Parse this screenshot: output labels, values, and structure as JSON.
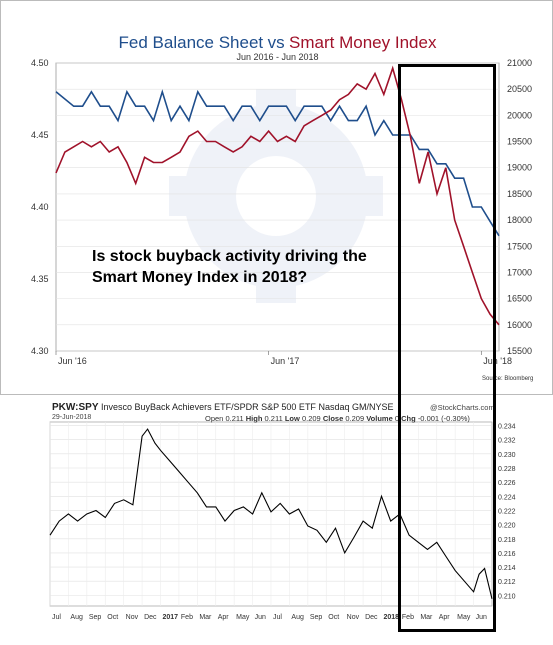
{
  "top_chart": {
    "title_part1": "Fed Balance Sheet",
    "title_vs": "vs",
    "title_part2": "Smart Money Index",
    "subtitle": "Jun 2016 - Jun 2018",
    "source": "Source: Bloomberg",
    "colors": {
      "fed": "#1f4e8c",
      "smi": "#a0122a",
      "watermark": "#e3e8f3"
    }
  },
  "bottom_chart": {
    "symbol": "PKW:SPY",
    "description": "Invesco BuyBack Achievers ETF/SPDR S&P 500 ETF",
    "exchange": "Nasdaq GM/NYSE",
    "date": "29-Jun-2018",
    "open_label": "Open",
    "open": "0.211",
    "high_label": "High",
    "high": "0.211",
    "low_label": "Low",
    "low": "0.209",
    "close_label": "Close",
    "close": "0.209",
    "volume_label": "Volume",
    "volume": "0",
    "chg_label": "Chg",
    "chg": "-0.001 (-0.30%)",
    "brand": "@StockCharts.com",
    "color": "#000000"
  },
  "callout": {
    "line1": "Is stock buyback activity driving the",
    "line2": "Smart Money Index in 2018?"
  },
  "chart_data": [
    {
      "type": "line",
      "title": "Fed Balance Sheet vs Smart Money Index",
      "subtitle": "Jun 2016 - Jun 2018",
      "x_tick_labels": [
        "Jun '16",
        "Jun '17",
        "Jun '18"
      ],
      "left_axis": {
        "ylim": [
          4.3,
          4.5
        ],
        "ticks": [
          "4.30",
          "4.35",
          "4.40",
          "4.45",
          "4.50"
        ]
      },
      "right_axis": {
        "ylim": [
          15500,
          21000
        ],
        "ticks": [
          "15500",
          "16000",
          "16500",
          "17000",
          "17500",
          "18000",
          "18500",
          "19000",
          "19500",
          "20000",
          "20500",
          "21000"
        ]
      },
      "series": [
        {
          "name": "Fed Balance Sheet",
          "axis": "left",
          "color": "#1f4e8c",
          "x": [
            0,
            1,
            1.5,
            2,
            2.5,
            3,
            3.5,
            4,
            4.5,
            5,
            5.5,
            6,
            6.5,
            7,
            7.5,
            8,
            8.5,
            9,
            9.5,
            10,
            10.5,
            11,
            11.5,
            12,
            12.5,
            13,
            13.5,
            14,
            14.5,
            15,
            15.5,
            16,
            16.5,
            17,
            17.5,
            18,
            18.5,
            19,
            19.5,
            20,
            20.5,
            21,
            21.5,
            22,
            22.5,
            23,
            23.5,
            24,
            24.5,
            25
          ],
          "values": [
            4.48,
            4.47,
            4.47,
            4.48,
            4.47,
            4.47,
            4.46,
            4.48,
            4.47,
            4.47,
            4.46,
            4.48,
            4.46,
            4.47,
            4.46,
            4.48,
            4.47,
            4.47,
            4.47,
            4.46,
            4.47,
            4.47,
            4.46,
            4.47,
            4.47,
            4.47,
            4.46,
            4.47,
            4.47,
            4.47,
            4.46,
            4.47,
            4.46,
            4.46,
            4.47,
            4.45,
            4.46,
            4.45,
            4.45,
            4.45,
            4.44,
            4.44,
            4.43,
            4.43,
            4.42,
            4.42,
            4.4,
            4.4,
            4.39,
            4.38
          ]
        },
        {
          "name": "Smart Money Index",
          "axis": "right",
          "color": "#a0122a",
          "x": [
            0,
            0.5,
            1,
            1.5,
            2,
            2.5,
            3,
            3.5,
            4,
            4.5,
            5,
            5.5,
            6,
            6.5,
            7,
            7.5,
            8,
            8.5,
            9,
            9.5,
            10,
            10.5,
            11,
            11.5,
            12,
            12.5,
            13,
            13.5,
            14,
            14.5,
            15,
            15.5,
            16,
            16.5,
            17,
            17.5,
            18,
            18.5,
            19,
            19.5,
            20,
            20.5,
            21,
            21.5,
            22,
            22.5,
            23,
            23.5,
            24,
            24.5,
            25
          ],
          "values": [
            18900,
            19300,
            19400,
            19500,
            19400,
            19500,
            19300,
            19400,
            19100,
            18700,
            19200,
            19100,
            19100,
            19200,
            19300,
            19600,
            19700,
            19500,
            19500,
            19400,
            19300,
            19400,
            19600,
            19500,
            19700,
            19500,
            19600,
            19500,
            19800,
            19900,
            20000,
            20100,
            20300,
            20400,
            20600,
            20500,
            20800,
            20400,
            20900,
            20300,
            19600,
            18700,
            19300,
            18500,
            19000,
            18000,
            17500,
            17000,
            16500,
            16200,
            16000
          ]
        }
      ]
    },
    {
      "type": "line",
      "title": "PKW:SPY Invesco BuyBack Achievers ETF/SPDR S&P 500 ETF",
      "x_tick_labels": [
        "Jul",
        "Aug",
        "Sep",
        "Oct",
        "Nov",
        "Dec",
        "2017",
        "Feb",
        "Mar",
        "Apr",
        "May",
        "Jun",
        "Jul",
        "Aug",
        "Sep",
        "Oct",
        "Nov",
        "Dec",
        "2018",
        "Feb",
        "Mar",
        "Apr",
        "May",
        "Jun"
      ],
      "ylim": [
        0.2085,
        0.2345
      ],
      "y_ticks": [
        "0.210",
        "0.212",
        "0.214",
        "0.216",
        "0.218",
        "0.220",
        "0.222",
        "0.224",
        "0.226",
        "0.228",
        "0.230",
        "0.232",
        "0.234"
      ],
      "series": [
        {
          "name": "PKW:SPY",
          "color": "#000000",
          "x": [
            0,
            0.5,
            1,
            1.5,
            2,
            2.5,
            3,
            3.5,
            4,
            4.5,
            5,
            5.3,
            5.7,
            6,
            6.5,
            7,
            7.5,
            8,
            8.5,
            9,
            9.5,
            10,
            10.5,
            11,
            11.5,
            12,
            12.5,
            13,
            13.5,
            14,
            14.5,
            15,
            15.5,
            16,
            16.5,
            17,
            17.5,
            18,
            18.5,
            19,
            19.5,
            20,
            20.5,
            21,
            21.5,
            22,
            22.5,
            23,
            23.3,
            23.6,
            24
          ],
          "values": [
            0.2185,
            0.2205,
            0.2215,
            0.2205,
            0.2215,
            0.222,
            0.221,
            0.223,
            0.2235,
            0.2228,
            0.2325,
            0.2335,
            0.2315,
            0.2305,
            0.229,
            0.2275,
            0.226,
            0.2245,
            0.2225,
            0.2225,
            0.2205,
            0.222,
            0.2225,
            0.2215,
            0.2245,
            0.2218,
            0.223,
            0.2215,
            0.2222,
            0.2198,
            0.2192,
            0.2175,
            0.2195,
            0.216,
            0.2182,
            0.2205,
            0.2195,
            0.224,
            0.2205,
            0.2215,
            0.2185,
            0.2175,
            0.2165,
            0.2175,
            0.2155,
            0.2135,
            0.212,
            0.2105,
            0.213,
            0.2138,
            0.2095
          ]
        }
      ]
    }
  ]
}
